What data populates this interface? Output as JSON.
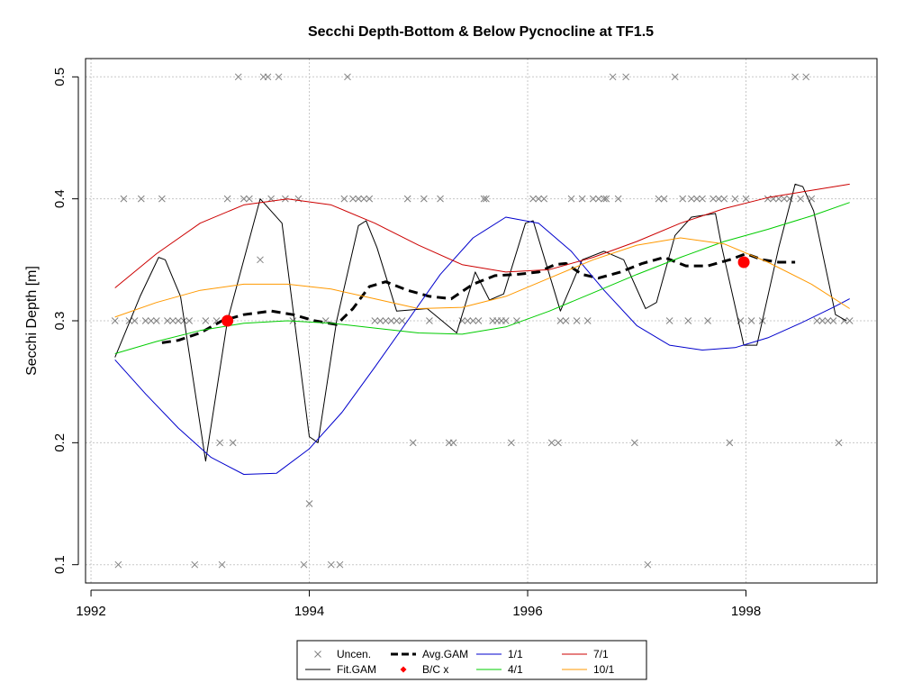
{
  "chart_data": {
    "type": "line",
    "title": "Secchi Depth-Bottom & Below Pycnocline at TF1.5",
    "xlabel": "",
    "ylabel": "Secchi Depth [m]",
    "xlim": [
      1991.95,
      1999.2
    ],
    "ylim": [
      0.085,
      0.515
    ],
    "x_ticks": [
      1992,
      1994,
      1996,
      1998
    ],
    "y_ticks": [
      0.1,
      0.2,
      0.3,
      0.4,
      0.5
    ],
    "x_tick_labels": [
      "1992",
      "1994",
      "1996",
      "1998"
    ],
    "y_tick_labels": [
      "0.1",
      "0.2",
      "0.3",
      "0.4",
      "0.5"
    ],
    "grid": true,
    "legend_position": "bottom-center",
    "legend": [
      {
        "label": "Uncen.",
        "marker": "x",
        "color": "#808080"
      },
      {
        "label": "Fit.GAM",
        "marker": "line",
        "color": "#000000"
      },
      {
        "label": "Avg.GAM",
        "marker": "dashed",
        "color": "#000000"
      },
      {
        "label": "B/C x",
        "marker": "diamond",
        "color": "#ff0000"
      },
      {
        "label": "1/1",
        "marker": "line",
        "color": "#0000cc"
      },
      {
        "label": "4/1",
        "marker": "line",
        "color": "#00cc00"
      },
      {
        "label": "7/1",
        "marker": "line",
        "color": "#cc0000"
      },
      {
        "label": "10/1",
        "marker": "line",
        "color": "#ff9900"
      }
    ],
    "uncensored_points": [
      [
        1992.22,
        0.3
      ],
      [
        1992.25,
        0.1
      ],
      [
        1992.3,
        0.4
      ],
      [
        1992.35,
        0.3
      ],
      [
        1992.4,
        0.3
      ],
      [
        1992.46,
        0.4
      ],
      [
        1992.5,
        0.3
      ],
      [
        1992.55,
        0.3
      ],
      [
        1992.6,
        0.3
      ],
      [
        1992.65,
        0.4
      ],
      [
        1992.7,
        0.3
      ],
      [
        1992.75,
        0.3
      ],
      [
        1992.8,
        0.3
      ],
      [
        1992.85,
        0.3
      ],
      [
        1992.9,
        0.3
      ],
      [
        1992.95,
        0.1
      ],
      [
        1993.05,
        0.3
      ],
      [
        1993.15,
        0.3
      ],
      [
        1993.18,
        0.2
      ],
      [
        1993.2,
        0.1
      ],
      [
        1993.25,
        0.4
      ],
      [
        1993.3,
        0.2
      ],
      [
        1993.35,
        0.5
      ],
      [
        1993.4,
        0.4
      ],
      [
        1993.45,
        0.4
      ],
      [
        1993.55,
        0.35
      ],
      [
        1993.58,
        0.5
      ],
      [
        1993.62,
        0.5
      ],
      [
        1993.65,
        0.4
      ],
      [
        1993.72,
        0.5
      ],
      [
        1993.78,
        0.4
      ],
      [
        1993.85,
        0.3
      ],
      [
        1993.9,
        0.4
      ],
      [
        1993.95,
        0.1
      ],
      [
        1994.0,
        0.15
      ],
      [
        1994.15,
        0.3
      ],
      [
        1994.2,
        0.1
      ],
      [
        1994.28,
        0.1
      ],
      [
        1994.32,
        0.4
      ],
      [
        1994.35,
        0.5
      ],
      [
        1994.4,
        0.4
      ],
      [
        1994.45,
        0.4
      ],
      [
        1994.5,
        0.4
      ],
      [
        1994.55,
        0.4
      ],
      [
        1994.6,
        0.3
      ],
      [
        1994.65,
        0.3
      ],
      [
        1994.7,
        0.3
      ],
      [
        1994.75,
        0.3
      ],
      [
        1994.8,
        0.3
      ],
      [
        1994.85,
        0.3
      ],
      [
        1994.9,
        0.4
      ],
      [
        1994.95,
        0.2
      ],
      [
        1995.05,
        0.4
      ],
      [
        1995.1,
        0.3
      ],
      [
        1995.2,
        0.4
      ],
      [
        1995.28,
        0.2
      ],
      [
        1995.32,
        0.2
      ],
      [
        1995.4,
        0.3
      ],
      [
        1995.45,
        0.3
      ],
      [
        1995.5,
        0.3
      ],
      [
        1995.55,
        0.3
      ],
      [
        1995.6,
        0.4
      ],
      [
        1995.62,
        0.4
      ],
      [
        1995.68,
        0.3
      ],
      [
        1995.72,
        0.3
      ],
      [
        1995.76,
        0.3
      ],
      [
        1995.8,
        0.3
      ],
      [
        1995.85,
        0.2
      ],
      [
        1995.9,
        0.3
      ],
      [
        1996.05,
        0.4
      ],
      [
        1996.1,
        0.4
      ],
      [
        1996.15,
        0.4
      ],
      [
        1996.22,
        0.2
      ],
      [
        1996.28,
        0.2
      ],
      [
        1996.3,
        0.3
      ],
      [
        1996.35,
        0.3
      ],
      [
        1996.4,
        0.4
      ],
      [
        1996.45,
        0.3
      ],
      [
        1996.5,
        0.4
      ],
      [
        1996.55,
        0.3
      ],
      [
        1996.6,
        0.4
      ],
      [
        1996.65,
        0.4
      ],
      [
        1996.7,
        0.4
      ],
      [
        1996.72,
        0.4
      ],
      [
        1996.78,
        0.5
      ],
      [
        1996.83,
        0.4
      ],
      [
        1996.9,
        0.5
      ],
      [
        1996.98,
        0.2
      ],
      [
        1997.1,
        0.1
      ],
      [
        1997.2,
        0.4
      ],
      [
        1997.25,
        0.4
      ],
      [
        1997.3,
        0.3
      ],
      [
        1997.35,
        0.5
      ],
      [
        1997.42,
        0.4
      ],
      [
        1997.47,
        0.3
      ],
      [
        1997.5,
        0.4
      ],
      [
        1997.55,
        0.4
      ],
      [
        1997.6,
        0.4
      ],
      [
        1997.65,
        0.3
      ],
      [
        1997.7,
        0.4
      ],
      [
        1997.75,
        0.4
      ],
      [
        1997.8,
        0.4
      ],
      [
        1997.85,
        0.2
      ],
      [
        1997.9,
        0.4
      ],
      [
        1997.95,
        0.3
      ],
      [
        1998.0,
        0.4
      ],
      [
        1998.05,
        0.3
      ],
      [
        1998.15,
        0.3
      ],
      [
        1998.2,
        0.4
      ],
      [
        1998.25,
        0.4
      ],
      [
        1998.3,
        0.4
      ],
      [
        1998.35,
        0.4
      ],
      [
        1998.4,
        0.4
      ],
      [
        1998.45,
        0.5
      ],
      [
        1998.5,
        0.4
      ],
      [
        1998.55,
        0.5
      ],
      [
        1998.6,
        0.4
      ],
      [
        1998.65,
        0.3
      ],
      [
        1998.7,
        0.3
      ],
      [
        1998.75,
        0.3
      ],
      [
        1998.8,
        0.3
      ],
      [
        1998.85,
        0.2
      ],
      [
        1998.9,
        0.3
      ],
      [
        1998.95,
        0.3
      ]
    ],
    "bc_points": [
      [
        1993.25,
        0.3
      ],
      [
        1997.98,
        0.348
      ]
    ],
    "series": [
      {
        "name": "Fit.GAM",
        "color": "#000000",
        "style": "solid",
        "x": [
          1992.22,
          1992.45,
          1992.62,
          1992.68,
          1992.82,
          1993.05,
          1993.25,
          1993.55,
          1993.75,
          1994.0,
          1994.08,
          1994.25,
          1994.45,
          1994.52,
          1994.62,
          1994.8,
          1995.08,
          1995.35,
          1995.52,
          1995.65,
          1995.78,
          1995.98,
          1996.05,
          1996.3,
          1996.5,
          1996.7,
          1996.88,
          1997.08,
          1997.18,
          1997.35,
          1997.5,
          1997.72,
          1997.78,
          1997.98,
          1998.1,
          1998.3,
          1998.45,
          1998.52,
          1998.62,
          1998.82,
          1998.92
        ],
        "y": [
          0.27,
          0.32,
          0.352,
          0.35,
          0.32,
          0.185,
          0.3,
          0.4,
          0.38,
          0.205,
          0.2,
          0.3,
          0.378,
          0.382,
          0.36,
          0.308,
          0.31,
          0.29,
          0.34,
          0.317,
          0.322,
          0.38,
          0.382,
          0.308,
          0.35,
          0.357,
          0.35,
          0.31,
          0.315,
          0.37,
          0.385,
          0.388,
          0.36,
          0.28,
          0.28,
          0.36,
          0.412,
          0.41,
          0.39,
          0.305,
          0.3
        ]
      },
      {
        "name": "Avg.GAM",
        "color": "#000000",
        "style": "dashed",
        "x": [
          1992.65,
          1992.8,
          1993.0,
          1993.2,
          1993.4,
          1993.65,
          1993.85,
          1994.05,
          1994.25,
          1994.4,
          1994.55,
          1994.7,
          1994.9,
          1995.1,
          1995.3,
          1995.5,
          1995.7,
          1995.9,
          1996.1,
          1996.25,
          1996.35,
          1996.5,
          1996.65,
          1996.85,
          1997.05,
          1997.25,
          1997.45,
          1997.65,
          1997.85,
          1998.0,
          1998.15,
          1998.3,
          1998.45
        ],
        "y": [
          0.282,
          0.284,
          0.29,
          0.3,
          0.305,
          0.308,
          0.305,
          0.3,
          0.297,
          0.31,
          0.328,
          0.332,
          0.325,
          0.32,
          0.318,
          0.33,
          0.337,
          0.338,
          0.34,
          0.346,
          0.347,
          0.338,
          0.335,
          0.34,
          0.347,
          0.352,
          0.345,
          0.345,
          0.35,
          0.355,
          0.35,
          0.348,
          0.348
        ]
      },
      {
        "name": "1/1",
        "color": "#0000cc",
        "style": "solid",
        "x": [
          1992.22,
          1992.5,
          1992.8,
          1993.1,
          1993.4,
          1993.7,
          1994.0,
          1994.3,
          1994.6,
          1994.9,
          1995.2,
          1995.5,
          1995.8,
          1996.1,
          1996.4,
          1996.7,
          1997.0,
          1997.3,
          1997.6,
          1997.9,
          1998.2,
          1998.5,
          1998.8,
          1998.95
        ],
        "y": [
          0.268,
          0.24,
          0.212,
          0.188,
          0.174,
          0.175,
          0.195,
          0.225,
          0.262,
          0.3,
          0.338,
          0.368,
          0.385,
          0.38,
          0.357,
          0.325,
          0.296,
          0.28,
          0.276,
          0.278,
          0.286,
          0.298,
          0.311,
          0.318
        ]
      },
      {
        "name": "4/1",
        "color": "#00cc00",
        "style": "solid",
        "x": [
          1992.22,
          1992.6,
          1993.0,
          1993.4,
          1993.8,
          1994.2,
          1994.6,
          1995.0,
          1995.4,
          1995.8,
          1996.2,
          1996.6,
          1997.0,
          1997.4,
          1997.8,
          1998.2,
          1998.6,
          1998.95
        ],
        "y": [
          0.273,
          0.283,
          0.292,
          0.298,
          0.3,
          0.298,
          0.294,
          0.29,
          0.289,
          0.295,
          0.308,
          0.323,
          0.338,
          0.352,
          0.365,
          0.375,
          0.386,
          0.397
        ]
      },
      {
        "name": "7/1",
        "color": "#cc0000",
        "style": "solid",
        "x": [
          1992.22,
          1992.6,
          1993.0,
          1993.4,
          1993.8,
          1994.2,
          1994.6,
          1995.0,
          1995.4,
          1995.8,
          1996.2,
          1996.6,
          1997.0,
          1997.4,
          1997.8,
          1998.2,
          1998.6,
          1998.95
        ],
        "y": [
          0.327,
          0.355,
          0.38,
          0.395,
          0.4,
          0.395,
          0.38,
          0.362,
          0.346,
          0.34,
          0.342,
          0.352,
          0.365,
          0.38,
          0.392,
          0.401,
          0.407,
          0.412
        ]
      },
      {
        "name": "10/1",
        "color": "#ff9900",
        "style": "solid",
        "x": [
          1992.22,
          1992.6,
          1993.0,
          1993.4,
          1993.8,
          1994.2,
          1994.6,
          1995.0,
          1995.4,
          1995.8,
          1996.2,
          1996.6,
          1997.0,
          1997.4,
          1997.8,
          1998.2,
          1998.6,
          1998.95
        ],
        "y": [
          0.303,
          0.315,
          0.325,
          0.33,
          0.33,
          0.326,
          0.318,
          0.31,
          0.311,
          0.32,
          0.335,
          0.35,
          0.362,
          0.368,
          0.363,
          0.348,
          0.33,
          0.31
        ]
      }
    ]
  }
}
